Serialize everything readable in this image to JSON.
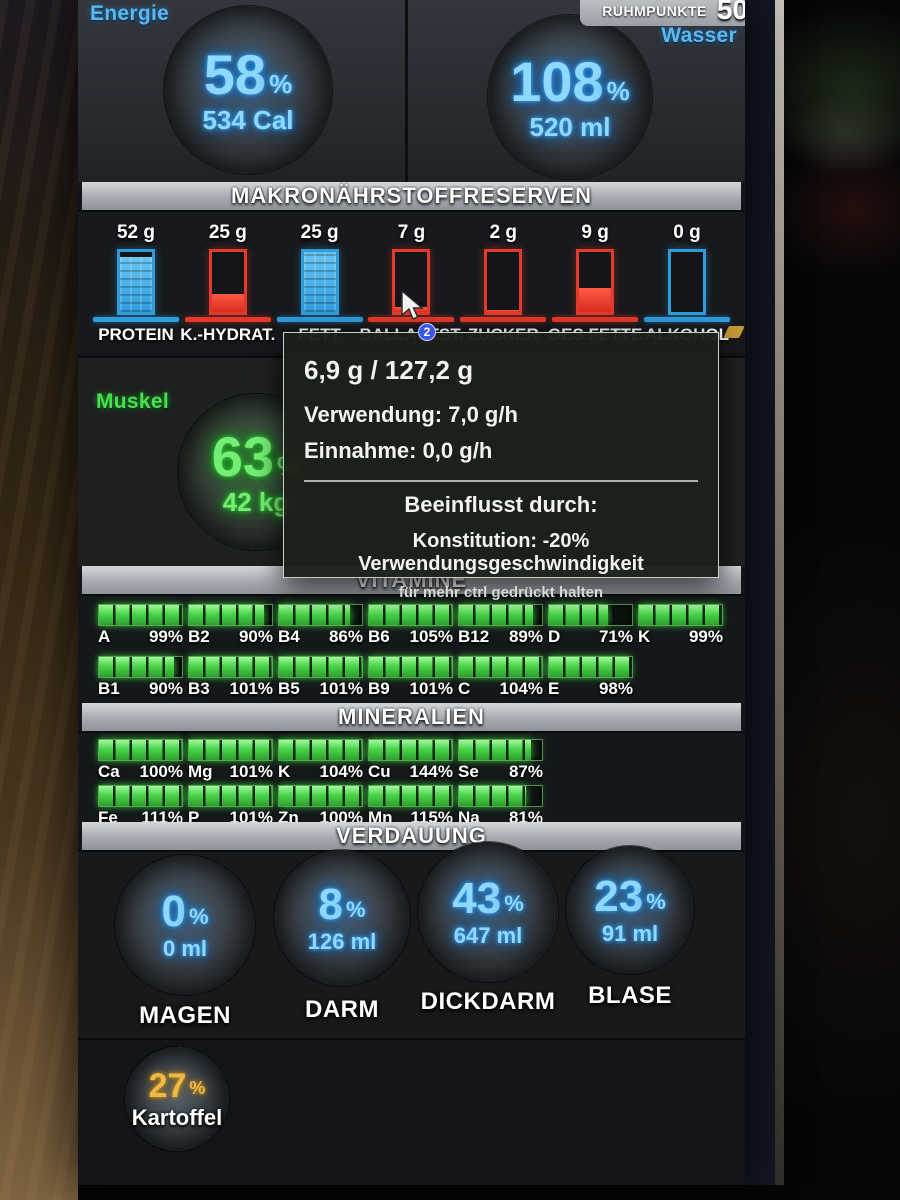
{
  "ui": {
    "percent_sign": "%"
  },
  "fame": {
    "label": "RUHMPUNKTE",
    "value": "50"
  },
  "energy": {
    "label": "Energie",
    "percent": "58",
    "value": "534 Cal",
    "segments": [
      {
        "color": "#4fb7ea",
        "from": 0,
        "to": 58
      }
    ]
  },
  "water": {
    "label": "Wasser",
    "percent": "108",
    "value": "520 ml",
    "segments": [
      {
        "color": "#4fb7ea",
        "from": 0,
        "to": 100
      }
    ]
  },
  "macro": {
    "header": "MAKRONÄHRSTOFFRESERVEN",
    "bars": [
      {
        "amount": "52 g",
        "label": "PROTEIN",
        "color": "blue",
        "fill": 92
      },
      {
        "amount": "25 g",
        "label": "K.-HYDRAT.",
        "color": "red",
        "fill": 30
      },
      {
        "amount": "25 g",
        "label": "FETT",
        "color": "blue",
        "fill": 100
      },
      {
        "amount": "7 g",
        "label": "BALLASTST.",
        "color": "red",
        "fill": 8
      },
      {
        "amount": "2 g",
        "label": "ZUCKER",
        "color": "red",
        "fill": 4
      },
      {
        "amount": "9 g",
        "label": "GES.FETTE",
        "color": "red",
        "fill": 40
      },
      {
        "amount": "0 g",
        "label": "ALKOHOL",
        "color": "blue",
        "fill": 0
      }
    ]
  },
  "muscle": {
    "label": "Muskel",
    "percent": "63",
    "value": "42 kg",
    "segments": [
      {
        "color": "#49e44d",
        "from": 0,
        "to": 63
      }
    ]
  },
  "tooltip": {
    "badge": "2",
    "title": "6,9 g / 127,2 g",
    "line_usage": "Verwendung:  7,0 g/h",
    "line_intake": "Einnahme:  0,0 g/h",
    "influenced_header": "Beeinflusst durch:",
    "influence_line": "Konstitution:  -20% Verwendungsgeschwindigkeit",
    "hint": "für mehr ctrl gedrückt halten"
  },
  "vitamins": {
    "header": "VITAMINE",
    "row1": [
      {
        "label": "A",
        "percent": "99%",
        "pct": 99
      },
      {
        "label": "B2",
        "percent": "90%",
        "pct": 90
      },
      {
        "label": "B4",
        "percent": "86%",
        "pct": 86
      },
      {
        "label": "B6",
        "percent": "105%",
        "pct": 105
      },
      {
        "label": "B12",
        "percent": "89%",
        "pct": 89
      },
      {
        "label": "D",
        "percent": "71%",
        "pct": 71
      },
      {
        "label": "K",
        "percent": "99%",
        "pct": 99
      }
    ],
    "row2": [
      {
        "label": "B1",
        "percent": "90%",
        "pct": 90
      },
      {
        "label": "B3",
        "percent": "101%",
        "pct": 101
      },
      {
        "label": "B5",
        "percent": "101%",
        "pct": 101
      },
      {
        "label": "B9",
        "percent": "101%",
        "pct": 101
      },
      {
        "label": "C",
        "percent": "104%",
        "pct": 104
      },
      {
        "label": "E",
        "percent": "98%",
        "pct": 98
      }
    ]
  },
  "minerals": {
    "header": "MINERALIEN",
    "row1": [
      {
        "label": "Ca",
        "percent": "100%",
        "pct": 100
      },
      {
        "label": "Mg",
        "percent": "101%",
        "pct": 101
      },
      {
        "label": "K",
        "percent": "104%",
        "pct": 104
      },
      {
        "label": "Cu",
        "percent": "144%",
        "pct": 144
      },
      {
        "label": "Se",
        "percent": "87%",
        "pct": 87
      }
    ],
    "row2": [
      {
        "label": "Fe",
        "percent": "111%",
        "pct": 111
      },
      {
        "label": "P",
        "percent": "101%",
        "pct": 101
      },
      {
        "label": "Zn",
        "percent": "100%",
        "pct": 100
      },
      {
        "label": "Mn",
        "percent": "115%",
        "pct": 115
      },
      {
        "label": "Na",
        "percent": "81%",
        "pct": 81
      }
    ]
  },
  "digestion": {
    "header": "VERDAUUNG",
    "gauges": [
      {
        "label": "MAGEN",
        "percent": "0",
        "value": "0 ml",
        "segments": []
      },
      {
        "label": "DARM",
        "percent": "8",
        "value": "126 ml",
        "segments": [
          {
            "color": "#d9a42e",
            "from": 0,
            "to": 2.5
          },
          {
            "color": "#4fb7ea",
            "from": 3.5,
            "to": 10
          }
        ]
      },
      {
        "label": "DICKDARM",
        "percent": "43",
        "value": "647 ml",
        "segments": [
          {
            "color": "#d9a42e",
            "from": 0,
            "to": 44
          },
          {
            "color": "#d9a42e",
            "from": 47,
            "to": 51
          }
        ]
      },
      {
        "label": "BLASE",
        "percent": "23",
        "value": "91 ml",
        "segments": [
          {
            "color": "#4fb7ea",
            "from": 0,
            "to": 23
          }
        ]
      }
    ]
  },
  "food": {
    "label": "Kartoffel",
    "percent": "27",
    "segments": [
      {
        "color": "#e2a42c",
        "from": 0,
        "to": 8
      },
      {
        "color": "#4fb7ea",
        "from": 9,
        "to": 30
      }
    ]
  }
}
